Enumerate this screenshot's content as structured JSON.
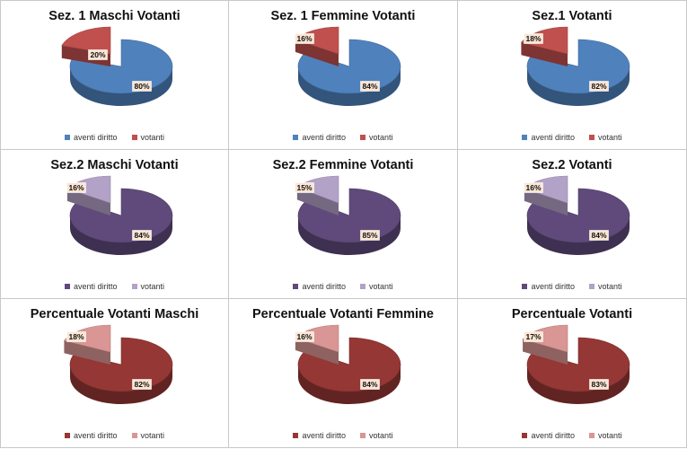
{
  "chart_data": [
    {
      "type": "pie",
      "title": "Sez. 1 Maschi Votanti",
      "categories": [
        "aventi diritto",
        "votanti"
      ],
      "values": [
        80,
        20
      ],
      "labels": [
        "80%",
        "20%"
      ],
      "colors": [
        "#4f81bd",
        "#c0504d"
      ],
      "legend": "bottom"
    },
    {
      "type": "pie",
      "title": "Sez. 1  Femmine Votanti",
      "categories": [
        "aventi diritto",
        "votanti"
      ],
      "values": [
        84,
        16
      ],
      "labels": [
        "84%",
        "16%"
      ],
      "colors": [
        "#4f81bd",
        "#c0504d"
      ],
      "legend": "bottom"
    },
    {
      "type": "pie",
      "title": "Sez.1  Votanti",
      "categories": [
        "aventi diritto",
        "votanti"
      ],
      "values": [
        82,
        18
      ],
      "labels": [
        "82%",
        "18%"
      ],
      "colors": [
        "#4f81bd",
        "#c0504d"
      ],
      "legend": "bottom"
    },
    {
      "type": "pie",
      "title": "Sez.2  Maschi Votanti",
      "categories": [
        "aventi diritto",
        "votanti"
      ],
      "values": [
        84,
        16
      ],
      "labels": [
        "84%",
        "16%"
      ],
      "colors": [
        "#604a7b",
        "#b3a2c7"
      ],
      "legend": "bottom"
    },
    {
      "type": "pie",
      "title": "Sez.2 Femmine Votanti",
      "categories": [
        "aventi diritto",
        "votanti"
      ],
      "values": [
        85,
        15
      ],
      "labels": [
        "85%",
        "15%"
      ],
      "colors": [
        "#604a7b",
        "#b3a2c7"
      ],
      "legend": "bottom"
    },
    {
      "type": "pie",
      "title": "Sez.2  Votanti",
      "categories": [
        "aventi diritto",
        "votanti"
      ],
      "values": [
        84,
        16
      ],
      "labels": [
        "84%",
        "16%"
      ],
      "colors": [
        "#604a7b",
        "#b3a2c7"
      ],
      "legend": "bottom"
    },
    {
      "type": "pie",
      "title": "Percentuale  Votanti Maschi",
      "categories": [
        "aventi diritto",
        "votanti"
      ],
      "values": [
        82,
        18
      ],
      "labels": [
        "82%",
        "18%"
      ],
      "colors": [
        "#953735",
        "#d99694"
      ],
      "legend": "bottom"
    },
    {
      "type": "pie",
      "title": "Percentuale Votanti Femmine",
      "categories": [
        "aventi diritto",
        "votanti"
      ],
      "values": [
        84,
        16
      ],
      "labels": [
        "84%",
        "16%"
      ],
      "colors": [
        "#953735",
        "#d99694"
      ],
      "legend": "bottom"
    },
    {
      "type": "pie",
      "title": "Percentuale Votanti",
      "categories": [
        "aventi diritto",
        "votanti"
      ],
      "values": [
        83,
        17
      ],
      "labels": [
        "83%",
        "17%"
      ],
      "colors": [
        "#953735",
        "#d99694"
      ],
      "legend": "bottom"
    }
  ]
}
